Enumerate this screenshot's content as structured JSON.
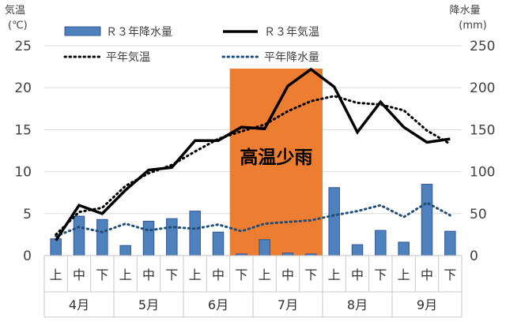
{
  "chart_data": {
    "type": "bar",
    "y_left_label": "気温",
    "y_left_unit": "(℃)",
    "y_right_label": "降水量",
    "y_right_unit": "(mm)",
    "y_left_lim": [
      0,
      25
    ],
    "y_left_ticks": [
      "0",
      "5",
      "10",
      "15",
      "20",
      "25"
    ],
    "y_right_lim": [
      0,
      250
    ],
    "y_right_ticks": [
      "0",
      "50",
      "100",
      "150",
      "200",
      "250"
    ],
    "grid": true,
    "legend_position": "top",
    "categories_inner": [
      "上",
      "中",
      "下",
      "上",
      "中",
      "下",
      "上",
      "中",
      "下",
      "上",
      "中",
      "下",
      "上",
      "中",
      "下",
      "上",
      "中",
      "下"
    ],
    "categories_outer": [
      "4月",
      "5月",
      "6月",
      "7月",
      "8月",
      "9月"
    ],
    "series": [
      {
        "name": "Ｒ３年降水量",
        "kind": "bar",
        "axis": "right",
        "color": "#4f81bd",
        "values": [
          20,
          47,
          43,
          12,
          41,
          44,
          53,
          28,
          2,
          19,
          3,
          2,
          81,
          13,
          30,
          16,
          85,
          29
        ]
      },
      {
        "name": "Ｒ３年気温",
        "kind": "line",
        "axis": "left",
        "color": "#000000",
        "values": [
          1.8,
          6.0,
          5.0,
          7.8,
          10.2,
          10.5,
          13.7,
          13.7,
          15.3,
          15.1,
          20.2,
          22.2,
          20.1,
          14.7,
          18.3,
          15.3,
          13.5,
          13.9
        ]
      },
      {
        "name": "平年気温",
        "kind": "dotted-line",
        "axis": "left",
        "color": "#000000",
        "values": [
          2.5,
          5.2,
          5.7,
          8.3,
          9.8,
          10.8,
          12.4,
          13.9,
          14.8,
          15.6,
          17.2,
          18.4,
          19.0,
          18.2,
          18.0,
          17.3,
          14.9,
          13.3
        ]
      },
      {
        "name": "平年降水量",
        "kind": "dotted-line",
        "axis": "right",
        "color": "#1f4e79",
        "values": [
          23,
          34,
          28,
          38,
          30,
          34,
          32,
          37,
          29,
          38,
          40,
          42,
          48,
          53,
          60,
          46,
          63,
          48
        ]
      }
    ],
    "annotation": {
      "label": "高温少雨",
      "color": "#ed7d31",
      "from_category": 8,
      "to_category": 11
    }
  }
}
